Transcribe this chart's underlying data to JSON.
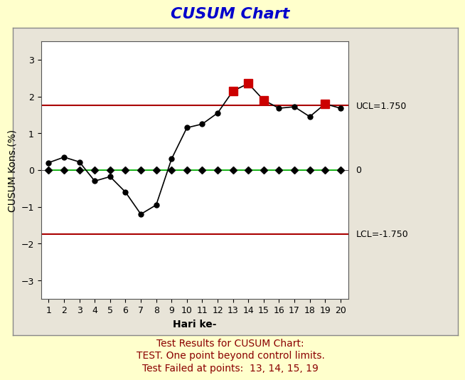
{
  "title": "CUSUM Chart",
  "xlabel": "Hari ke-",
  "ylabel": "CUSUM Kons.(%)",
  "ucl": 1.75,
  "lcl": -1.75,
  "xlim": [
    0.5,
    20.5
  ],
  "ylim": [
    -3.5,
    3.5
  ],
  "yticks": [
    -3,
    -2,
    -1,
    0,
    1,
    2,
    3
  ],
  "xticks": [
    1,
    2,
    3,
    4,
    5,
    6,
    7,
    8,
    9,
    10,
    11,
    12,
    13,
    14,
    15,
    16,
    17,
    18,
    19,
    20
  ],
  "main_line": [
    0.2,
    0.35,
    0.22,
    -0.3,
    -0.18,
    -0.6,
    -1.2,
    -0.95,
    0.3,
    1.15,
    1.25,
    1.55,
    2.15,
    2.35,
    1.9,
    1.68,
    1.72,
    1.45,
    1.8,
    1.68
  ],
  "zero_line": [
    0.0,
    0.0,
    0.0,
    0.0,
    0.0,
    0.0,
    0.0,
    0.0,
    0.0,
    0.0,
    0.0,
    0.0,
    0.0,
    0.0,
    0.0,
    0.0,
    0.0,
    0.0,
    0.0,
    0.0
  ],
  "failed_points": [
    13,
    14,
    15,
    19
  ],
  "bg_outer": "#ffffcc",
  "bg_panel": "#e8e4d8",
  "plot_bg": "#ffffff",
  "line_color": "#000000",
  "ucl_color": "#aa0000",
  "lcl_color": "#aa0000",
  "center_color": "#00bb00",
  "fail_color": "#cc0000",
  "title_color": "#0000cc",
  "annotation_color": "#000000",
  "subtitle_color": "#8b0000",
  "title_fontsize": 16,
  "label_fontsize": 10,
  "tick_fontsize": 9,
  "annotation_fontsize": 9,
  "subtitle_fontsize": 10,
  "ucl_label": "UCL=1.750",
  "lcl_label": "LCL=-1.750",
  "center_label": "0",
  "subtitle_lines": [
    "Test Results for CUSUM Chart:",
    "TEST. One point beyond control limits.",
    "Test Failed at points:  13, 14, 15, 19"
  ]
}
